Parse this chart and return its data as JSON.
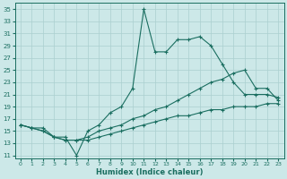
{
  "xlabel": "Humidex (Indice chaleur)",
  "ylabel": "",
  "bg_color": "#cce8e8",
  "grid_color": "#aacfcf",
  "line_color": "#1a6e60",
  "xlim": [
    -0.5,
    23.5
  ],
  "ylim": [
    10.5,
    36
  ],
  "xticks": [
    0,
    1,
    2,
    3,
    4,
    5,
    6,
    7,
    8,
    9,
    10,
    11,
    12,
    13,
    14,
    15,
    16,
    17,
    18,
    19,
    20,
    21,
    22,
    23
  ],
  "yticks": [
    11,
    13,
    15,
    17,
    19,
    21,
    23,
    25,
    27,
    29,
    31,
    33,
    35
  ],
  "line1_x": [
    0,
    1,
    2,
    3,
    4,
    5,
    6,
    7,
    8,
    9,
    10,
    11,
    12,
    13,
    14,
    15,
    16,
    17,
    18,
    19,
    20,
    21,
    22,
    23
  ],
  "line1_y": [
    16,
    15.5,
    15.5,
    14,
    14,
    11,
    15,
    16,
    18,
    19,
    22,
    35,
    28,
    28,
    30,
    30,
    30.5,
    29,
    26,
    23,
    21,
    21,
    21,
    20.5
  ],
  "line2_x": [
    0,
    1,
    2,
    3,
    4,
    5,
    6,
    7,
    8,
    9,
    10,
    11,
    12,
    13,
    14,
    15,
    16,
    17,
    18,
    19,
    20,
    21,
    22,
    23
  ],
  "line2_y": [
    16,
    15.5,
    15,
    14,
    13.5,
    13.5,
    14,
    15,
    15.5,
    16,
    17,
    17.5,
    18.5,
    19,
    20,
    21,
    22,
    23,
    23.5,
    24.5,
    25,
    22,
    22,
    20
  ],
  "line3_x": [
    0,
    1,
    2,
    3,
    4,
    5,
    6,
    7,
    8,
    9,
    10,
    11,
    12,
    13,
    14,
    15,
    16,
    17,
    18,
    19,
    20,
    21,
    22,
    23
  ],
  "line3_y": [
    16,
    15.5,
    15,
    14,
    13.5,
    13.5,
    13.5,
    14,
    14.5,
    15,
    15.5,
    16,
    16.5,
    17,
    17.5,
    17.5,
    18,
    18.5,
    18.5,
    19,
    19,
    19,
    19.5,
    19.5
  ]
}
